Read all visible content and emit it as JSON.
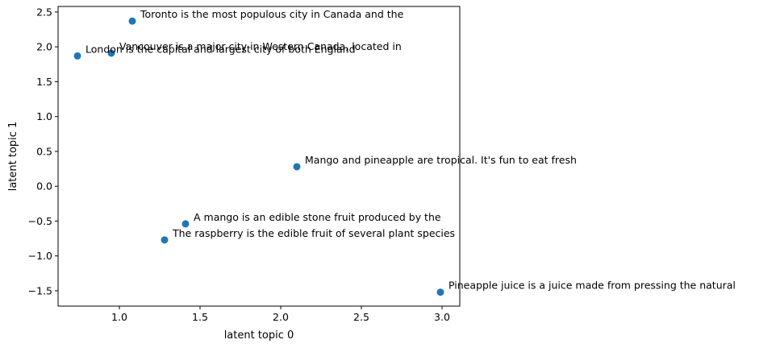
{
  "chart_data": {
    "type": "scatter",
    "title": "",
    "xlabel": "latent topic 0",
    "ylabel": "latent topic 1",
    "xlim": [
      0.62,
      3.11
    ],
    "ylim": [
      -1.72,
      2.58
    ],
    "xticks": [
      1.0,
      1.5,
      2.0,
      2.5,
      3.0
    ],
    "xtick_labels": [
      "1.0",
      "1.5",
      "2.0",
      "2.5",
      "3.0"
    ],
    "yticks": [
      -1.5,
      -1.0,
      -0.5,
      0.0,
      0.5,
      1.0,
      1.5,
      2.0,
      2.5
    ],
    "ytick_labels": [
      "−1.5",
      "−1.0",
      "−0.5",
      "0.0",
      "0.5",
      "1.0",
      "1.5",
      "2.0",
      "2.5"
    ],
    "grid": false,
    "marker_color": "#1f77b4",
    "points": [
      {
        "x": 1.08,
        "y": 2.37,
        "label": "Toronto is the most populous city in Canada and the"
      },
      {
        "x": 0.95,
        "y": 1.91,
        "label": "Vancouver is a major city in Western Canada, located in"
      },
      {
        "x": 0.74,
        "y": 1.87,
        "label": "London is the capital and largest city of both England"
      },
      {
        "x": 2.1,
        "y": 0.28,
        "label": "Mango and pineapple are tropical. It's fun to eat fresh"
      },
      {
        "x": 1.41,
        "y": -0.54,
        "label": "A mango is an edible stone fruit produced by the"
      },
      {
        "x": 1.28,
        "y": -0.77,
        "label": "The raspberry is the edible fruit of several plant species"
      },
      {
        "x": 2.99,
        "y": -1.52,
        "label": "Pineapple juice is a juice made from pressing the natural"
      }
    ]
  }
}
